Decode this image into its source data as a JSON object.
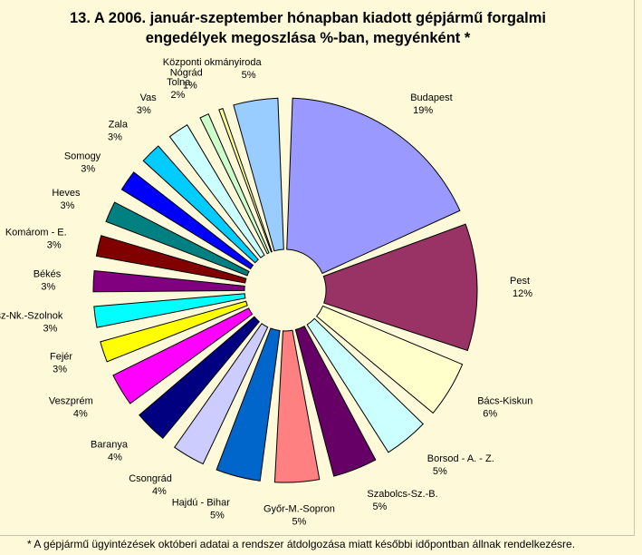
{
  "title_line1": "13. A  2006. január-szeptember hónapban kiadott gépjármű forgalmi",
  "title_line2": "engedélyek megoszlása %-ban, megyénként *",
  "footnote": "* A gépjármű ügyintézések októberi adatai a rendszer átdolgozása miatt későbbi időpontban állnak rendelkezésre.",
  "chart_data": {
    "type": "pie",
    "exploded": true,
    "unit": "%",
    "slices": [
      {
        "name": "Budapest",
        "label": "19%",
        "value": 19,
        "color": "#9999ff"
      },
      {
        "name": "Pest",
        "label": "12%",
        "value": 12,
        "color": "#993366"
      },
      {
        "name": "Bács-Kiskun",
        "label": "6%",
        "value": 6,
        "color": "#ffffcc"
      },
      {
        "name": "Borsod - A. - Z.",
        "label": "5%",
        "value": 5,
        "color": "#ccffff"
      },
      {
        "name": "Szabolcs-Sz.-B.",
        "label": "5%",
        "value": 5,
        "color": "#660066"
      },
      {
        "name": "Győr-M.-Sopron",
        "label": "5%",
        "value": 5,
        "color": "#ff8080"
      },
      {
        "name": "Hajdú - Bihar",
        "label": "5%",
        "value": 5,
        "color": "#0066cc"
      },
      {
        "name": "Csongrád",
        "label": "4%",
        "value": 4,
        "color": "#ccccff"
      },
      {
        "name": "Baranya",
        "label": "4%",
        "value": 4,
        "color": "#000080"
      },
      {
        "name": "Veszprém",
        "label": "4%",
        "value": 4,
        "color": "#ff00ff"
      },
      {
        "name": "Fejér",
        "label": "3%",
        "value": 3,
        "color": "#ffff00"
      },
      {
        "name": "Jász-Nk.-Szolnok",
        "label": "3%",
        "value": 3,
        "color": "#00ffff"
      },
      {
        "name": "Békés",
        "label": "3%",
        "value": 3,
        "color": "#800080"
      },
      {
        "name": "Komárom - E.",
        "label": "3%",
        "value": 3,
        "color": "#800000"
      },
      {
        "name": "Heves",
        "label": "3%",
        "value": 3,
        "color": "#008080"
      },
      {
        "name": "Somogy",
        "label": "3%",
        "value": 3,
        "color": "#0000ff"
      },
      {
        "name": "Zala",
        "label": "3%",
        "value": 3,
        "color": "#00ccff"
      },
      {
        "name": "Vas",
        "label": "3%",
        "value": 3,
        "color": "#ccffff"
      },
      {
        "name": "Tolna",
        "label": "2%",
        "value": 2,
        "color": "#ccffcc"
      },
      {
        "name": "Nógrád",
        "label": "1%",
        "value": 1,
        "color": "#ffff99"
      },
      {
        "name": "Központi okmányiroda",
        "label": "5%",
        "value": 5,
        "color": "#99ccff"
      }
    ]
  }
}
